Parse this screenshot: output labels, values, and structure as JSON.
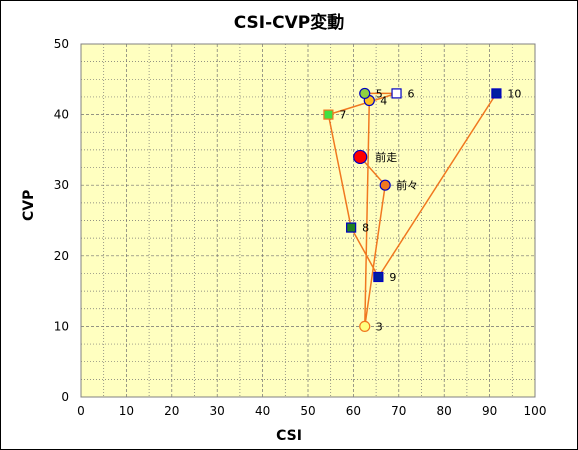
{
  "chart_data": {
    "type": "scatter",
    "title": "CSI-CVP変動",
    "xlabel": "CSI",
    "ylabel": "CVP",
    "xlim": [
      0,
      100
    ],
    "ylim": [
      0,
      50
    ],
    "x_ticks": [
      "0",
      "10",
      "20",
      "30",
      "40",
      "50",
      "60",
      "70",
      "80",
      "90",
      "100"
    ],
    "y_ticks": [
      "0",
      "10",
      "20",
      "30",
      "40",
      "50"
    ],
    "grid": true,
    "plot_background": "#ffffc0",
    "line_color": "#f07820",
    "points": [
      {
        "label": "前走",
        "x": 61.5,
        "y": 34,
        "marker": "circle-large",
        "fill": "#ff0000",
        "stroke": "#0000c0"
      },
      {
        "label": "前々",
        "x": 67,
        "y": 30,
        "marker": "circle",
        "fill": "#f07820",
        "stroke": "#0000c0"
      },
      {
        "label": "3",
        "x": 62.5,
        "y": 10,
        "marker": "circle",
        "fill": "#ffff80",
        "stroke": "#f07820"
      },
      {
        "label": "4",
        "x": 63.5,
        "y": 42,
        "marker": "circle",
        "fill": "#ffc020",
        "stroke": "#0000c0"
      },
      {
        "label": "5",
        "x": 62.5,
        "y": 43,
        "marker": "circle",
        "fill": "#90d040",
        "stroke": "#0000c0"
      },
      {
        "label": "6",
        "x": 69.5,
        "y": 43,
        "marker": "square",
        "fill": "#ffffff",
        "stroke": "#0000c0"
      },
      {
        "label": "7",
        "x": 54.5,
        "y": 40,
        "marker": "square",
        "fill": "#40e040",
        "stroke": "#f07820"
      },
      {
        "label": "8",
        "x": 59.5,
        "y": 24,
        "marker": "square",
        "fill": "#208020",
        "stroke": "#0000c0"
      },
      {
        "label": "9",
        "x": 65.5,
        "y": 17,
        "marker": "square",
        "fill": "#0020a0",
        "stroke": "#0000c0"
      },
      {
        "label": "10",
        "x": 91.5,
        "y": 43,
        "marker": "square",
        "fill": "#0020a0",
        "stroke": "#0000c0"
      }
    ],
    "line_path": [
      "10",
      "9",
      "8",
      "7",
      "6",
      "5",
      "4",
      "3",
      "前々",
      "前走"
    ]
  }
}
